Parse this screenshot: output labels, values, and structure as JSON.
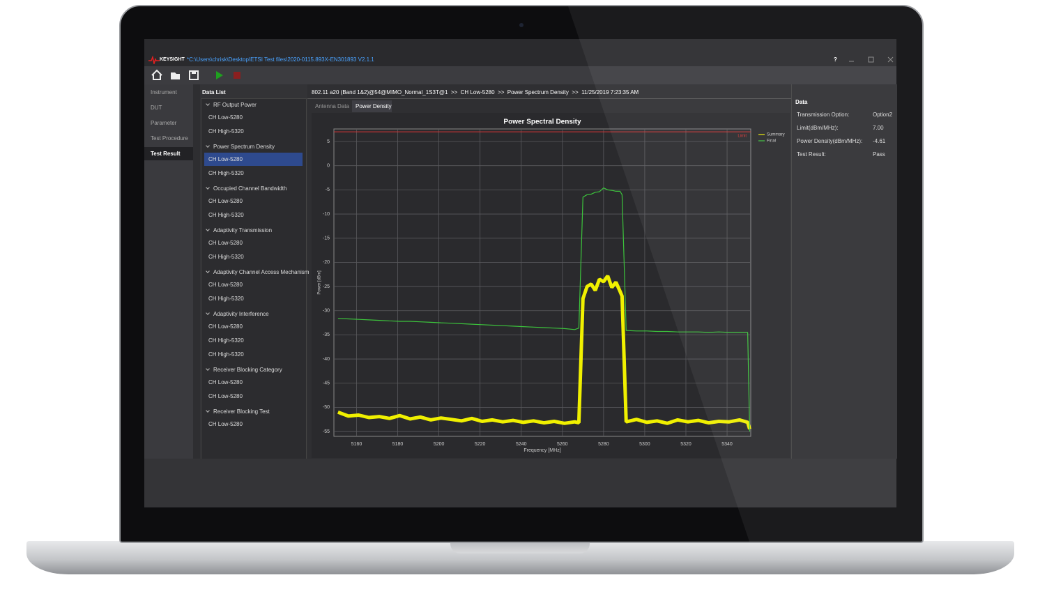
{
  "window": {
    "brand": "KEYSIGHT",
    "path": "*C:\\Users\\chrisk\\Desktop\\ETSI Test files\\2020-0115.893X-EN301893 V2.1.1",
    "help": "?"
  },
  "nav": [
    "Instrument",
    "DUT",
    "Parameter",
    "Test Procedure",
    "Test Result"
  ],
  "data_list": {
    "title": "Data List",
    "groups": [
      {
        "name": "RF Output Power",
        "items": [
          "CH Low-5280",
          "CH High-5320"
        ]
      },
      {
        "name": "Power Spectrum Density",
        "items": [
          "CH Low-5280",
          "CH High-5320"
        ]
      },
      {
        "name": "Occupied Channel Bandwidth",
        "items": [
          "CH Low-5280",
          "CH High-5320"
        ]
      },
      {
        "name": "Adaptivity Transmission",
        "items": [
          "CH Low-5280",
          "CH High-5320"
        ]
      },
      {
        "name": "Adaptivity Channel Access Mechanism",
        "items": [
          "CH Low-5280",
          "CH High-5320"
        ]
      },
      {
        "name": "Adaptivity Interference",
        "items": [
          "CH Low-5280",
          "CH High-5320",
          "CH High-5320"
        ]
      },
      {
        "name": "Receiver Blocking Category",
        "items": [
          "CH Low-5280",
          "CH Low-5280"
        ]
      },
      {
        "name": "Receiver Blocking Test",
        "items": [
          "CH Low-5280"
        ]
      }
    ]
  },
  "breadcrumb": "802.11 a20 (Band 1&2)@54@MIMO_Normal_1S3T@1  >>  CH Low-5280  >>  Power Spectrum Density  >>  11/25/2019 7:23:35 AM",
  "tabs": [
    "Antenna Data",
    "Power Density"
  ],
  "chart_data": {
    "type": "line",
    "title": "Power Spectral Density",
    "xlabel": "Frequency [MHz]",
    "ylabel": "Power [dBm]",
    "xlim": [
      5149,
      5351.5
    ],
    "ylim": [
      -56,
      7.6
    ],
    "xticks": [
      5160,
      5180,
      5200,
      5220,
      5240,
      5260,
      5280,
      5300,
      5320,
      5340
    ],
    "yticks": [
      5,
      0,
      -5,
      -10,
      -15,
      -20,
      -25,
      -30,
      -35,
      -40,
      -45,
      -50,
      -55
    ],
    "grid": true,
    "legend": "right",
    "limit": {
      "label": "Limit",
      "value": 7,
      "color": "#d83434"
    },
    "x": [
      5151,
      5156,
      5161,
      5166,
      5171,
      5176,
      5181,
      5186,
      5191,
      5196,
      5201,
      5206,
      5211,
      5216,
      5221,
      5226,
      5231,
      5236,
      5241,
      5246,
      5251,
      5256,
      5261,
      5266,
      5268,
      5270,
      5272,
      5274,
      5276,
      5278,
      5280,
      5282,
      5284,
      5286,
      5288,
      5289,
      5291,
      5296,
      5301,
      5306,
      5311,
      5316,
      5321,
      5326,
      5331,
      5336,
      5341,
      5346,
      5350,
      5351
    ],
    "series": [
      {
        "name": "Summary",
        "color": "#f0f000",
        "values": [
          -51.0,
          -51.8,
          -51.6,
          -52.1,
          -51.9,
          -52.3,
          -51.7,
          -52.4,
          -52.0,
          -52.6,
          -52.2,
          -52.5,
          -52.8,
          -52.3,
          -52.9,
          -52.6,
          -53.0,
          -52.7,
          -53.1,
          -52.8,
          -53.2,
          -52.9,
          -53.3,
          -53.0,
          -53.2,
          -27.5,
          -25.0,
          -24.5,
          -25.8,
          -23.5,
          -24.0,
          -22.8,
          -25.2,
          -24.1,
          -26.0,
          -27.0,
          -53.0,
          -52.5,
          -53.1,
          -52.8,
          -53.3,
          -52.6,
          -53.0,
          -52.7,
          -53.2,
          -52.9,
          -53.0,
          -52.6,
          -53.1,
          -54.5
        ]
      },
      {
        "name": "Final",
        "color": "#3cc43c",
        "values": [
          -31.6,
          -31.7,
          -31.8,
          -31.9,
          -32.0,
          -32.1,
          -32.2,
          -32.2,
          -32.3,
          -32.4,
          -32.5,
          -32.6,
          -32.7,
          -32.8,
          -32.9,
          -33.0,
          -33.1,
          -33.2,
          -33.3,
          -33.4,
          -33.5,
          -33.6,
          -33.7,
          -33.9,
          -33.6,
          -6.5,
          -6.0,
          -5.9,
          -5.5,
          -5.4,
          -4.6,
          -5.0,
          -5.1,
          -5.3,
          -5.3,
          -6.0,
          -34.1,
          -34.2,
          -34.2,
          -34.3,
          -34.3,
          -34.4,
          -34.4,
          -34.4,
          -34.5,
          -34.4,
          -34.5,
          -34.5,
          -34.5,
          -55
        ]
      }
    ]
  },
  "data_panel": {
    "title": "Data",
    "rows": [
      [
        "Transmission Option:",
        "Option2"
      ],
      [
        "Limit(dBm/MHz):",
        "7.00"
      ],
      [
        "Power Density(dBm/MHz):",
        "-4.61"
      ],
      [
        "Test Result:",
        "Pass"
      ]
    ]
  }
}
